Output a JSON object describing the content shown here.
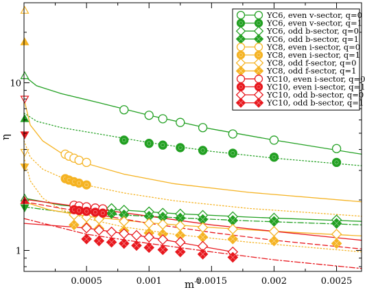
{
  "chart_data": {
    "type": "scatter",
    "xlabel": "m",
    "xlabel_sup": "-1",
    "ylabel": "η",
    "xlim": [
      0,
      0.0027
    ],
    "ylim": [
      0.75,
      30
    ],
    "yscale": "log",
    "xticks": [
      0.0005,
      0.001,
      0.0015,
      0.002,
      0.0025
    ],
    "xtick_labels": [
      "0.0005",
      "0.001",
      "0.0015",
      "0.002",
      "0.0025"
    ],
    "yticks": [
      1,
      10
    ],
    "ytick_labels": [
      "1",
      "10"
    ],
    "legend_position": "top-right",
    "series": [
      {
        "name": "YC6, even v-sector, q=0",
        "color": "#22a022",
        "marker": "circle",
        "filled": false,
        "x": [
          0.0008,
          0.001,
          0.00111,
          0.00125,
          0.00143,
          0.00167,
          0.002,
          0.0025
        ],
        "y": [
          6.9,
          6.4,
          6.1,
          5.8,
          5.4,
          4.95,
          4.55,
          4.05
        ],
        "fit": {
          "style": "solid",
          "extrap": 11.0,
          "x": [
            0,
            0.0001,
            0.0003,
            0.0006,
            0.001,
            0.0015,
            0.002,
            0.0027
          ],
          "y": [
            11.0,
            9.6,
            8.6,
            7.6,
            6.4,
            5.3,
            4.55,
            3.75
          ]
        }
      },
      {
        "name": "YC6, even v-sector, q=1",
        "color": "#22a022",
        "marker": "circle",
        "filled": true,
        "x": [
          0.0008,
          0.001,
          0.00111,
          0.00125,
          0.00143,
          0.00167,
          0.002,
          0.0025
        ],
        "y": [
          4.55,
          4.35,
          4.25,
          4.1,
          3.95,
          3.8,
          3.6,
          3.35
        ],
        "fit": {
          "style": "dotted",
          "extrap": 6.6,
          "x": [
            0,
            0.0001,
            0.0003,
            0.0006,
            0.001,
            0.0015,
            0.002,
            0.0027
          ],
          "y": [
            6.6,
            5.9,
            5.4,
            4.95,
            4.4,
            3.9,
            3.55,
            3.2
          ]
        }
      },
      {
        "name": "YC6, odd b-sector, q=0",
        "color": "#22a022",
        "marker": "diamond",
        "filled": false,
        "x": [
          0.0007,
          0.0008,
          0.001,
          0.00111,
          0.00125,
          0.00143,
          0.00167,
          0.002,
          0.0025
        ],
        "y": [
          1.78,
          1.74,
          1.7,
          1.67,
          1.65,
          1.62,
          1.59,
          1.56,
          1.52
        ],
        "fit": {
          "style": "solid",
          "extrap": 2.05,
          "x": [
            0,
            0.0003,
            0.0007,
            0.0012,
            0.0018,
            0.0027
          ],
          "y": [
            2.05,
            1.86,
            1.76,
            1.66,
            1.58,
            1.49
          ]
        }
      },
      {
        "name": "YC6, odd b-sector, q=1",
        "color": "#22a022",
        "marker": "diamond",
        "filled": true,
        "x": [
          0.0007,
          0.0008,
          0.001,
          0.00111,
          0.00125,
          0.00143,
          0.00167,
          0.002,
          0.0025
        ],
        "y": [
          1.66,
          1.63,
          1.6,
          1.58,
          1.56,
          1.53,
          1.51,
          1.49,
          1.45
        ],
        "fit": {
          "style": "dashdot",
          "extrap": 1.82,
          "x": [
            0,
            0.0003,
            0.0007,
            0.0012,
            0.0018,
            0.0027
          ],
          "y": [
            1.82,
            1.7,
            1.64,
            1.57,
            1.5,
            1.42
          ]
        }
      },
      {
        "name": "YC8, even i-sector, q=0",
        "color": "#f5b323",
        "marker": "circle",
        "filled": false,
        "x": [
          0.00033,
          0.00036,
          0.0004,
          0.00044,
          0.0005
        ],
        "y": [
          3.75,
          3.65,
          3.55,
          3.45,
          3.35
        ],
        "fit": {
          "style": "solid",
          "extrap": 8.0,
          "x": [
            0,
            5e-05,
            0.00015,
            0.0003,
            0.0005,
            0.0008,
            0.0012,
            0.0018,
            0.0027
          ],
          "y": [
            8.0,
            5.6,
            4.5,
            3.8,
            3.3,
            2.85,
            2.5,
            2.22,
            1.95
          ]
        }
      },
      {
        "name": "YC8, even i-sector, q=1",
        "color": "#f5b323",
        "marker": "circle",
        "filled": true,
        "x": [
          0.00033,
          0.00036,
          0.0004,
          0.00044,
          0.0005
        ],
        "y": [
          2.68,
          2.63,
          2.57,
          2.52,
          2.46
        ],
        "fit": {
          "style": "dotted",
          "extrap": 4.5,
          "x": [
            0,
            5e-05,
            0.00015,
            0.0003,
            0.0005,
            0.0008,
            0.0012,
            0.0018,
            0.0027
          ],
          "y": [
            4.5,
            3.6,
            3.05,
            2.72,
            2.45,
            2.2,
            1.98,
            1.78,
            1.6
          ]
        }
      },
      {
        "name": "YC8, odd f-sector, q=0",
        "color": "#f5b323",
        "marker": "diamond",
        "filled": false,
        "x": [
          0.0004,
          0.0005,
          0.0006,
          0.0008,
          0.001,
          0.00111,
          0.00125,
          0.00143,
          0.00167,
          0.002,
          0.0025
        ],
        "y": [
          1.63,
          1.58,
          1.54,
          1.49,
          1.45,
          1.43,
          1.4,
          1.37,
          1.34,
          1.3,
          1.25
        ],
        "fit": {
          "style": "solid",
          "extrap": 1.95,
          "x": [
            0,
            0.0002,
            0.0005,
            0.001,
            0.0015,
            0.002,
            0.0027
          ],
          "y": [
            1.95,
            1.75,
            1.6,
            1.46,
            1.37,
            1.3,
            1.22
          ]
        }
      },
      {
        "name": "YC8, odd f-sector, q=1",
        "color": "#f5b323",
        "marker": "diamond",
        "filled": true,
        "x": [
          0.0004,
          0.0005,
          0.0006,
          0.0008,
          0.001,
          0.00111,
          0.00125,
          0.00143,
          0.00167,
          0.002,
          0.0025
        ],
        "y": [
          1.42,
          1.38,
          1.35,
          1.31,
          1.27,
          1.25,
          1.23,
          1.2,
          1.17,
          1.14,
          1.1
        ],
        "fit": {
          "style": "dotted",
          "extrap": 3.6,
          "x": [
            0,
            5e-05,
            0.00015,
            0.0003,
            0.0005,
            0.0008,
            0.0012,
            0.0018,
            0.0027
          ],
          "y": [
            3.6,
            2.6,
            2.05,
            1.75,
            1.55,
            1.38,
            1.25,
            1.12,
            0.98
          ]
        }
      },
      {
        "name": "YC10, even i-sector, q=0",
        "color": "#e8181e",
        "marker": "circle",
        "filled": false,
        "x": [
          0.0004,
          0.00044,
          0.0005,
          0.00057,
          0.00063
        ],
        "y": [
          1.86,
          1.84,
          1.82,
          1.79,
          1.77
        ],
        "fit": {
          "style": "solid",
          "extrap": 2.02,
          "x": [
            0,
            0.0005,
            0.001,
            0.0015,
            0.002,
            0.0027
          ],
          "y": [
            2.02,
            1.8,
            1.6,
            1.42,
            1.3,
            1.15
          ]
        }
      },
      {
        "name": "YC10, even i-sector, q=1",
        "color": "#e8181e",
        "marker": "circle",
        "filled": true,
        "x": [
          0.0004,
          0.00044,
          0.0005,
          0.00057,
          0.00063
        ],
        "y": [
          1.75,
          1.73,
          1.71,
          1.69,
          1.67
        ],
        "fit": {
          "style": "dashed",
          "extrap": 1.95,
          "x": [
            0,
            0.0005,
            0.001,
            0.0015,
            0.002,
            0.0027
          ],
          "y": [
            1.95,
            1.68,
            1.45,
            1.28,
            1.15,
            1.02
          ]
        }
      },
      {
        "name": "YC10, odd b-sector, q=0",
        "color": "#e8181e",
        "marker": "diamond",
        "filled": false,
        "x": [
          0.0005,
          0.0006,
          0.0007,
          0.0008,
          0.0009,
          0.001,
          0.00111,
          0.00125,
          0.00143,
          0.00167
        ],
        "y": [
          1.36,
          1.32,
          1.29,
          1.26,
          1.23,
          1.2,
          1.16,
          1.12,
          1.06,
          0.98
        ],
        "fit": {
          "style": "solid",
          "extrap": 1.45,
          "x": [
            0,
            0.0005,
            0.001,
            0.00167
          ],
          "y": [
            1.45,
            1.36,
            1.2,
            0.98
          ]
        }
      },
      {
        "name": "YC10, odd b-sector, q=1",
        "color": "#e8181e",
        "marker": "diamond",
        "filled": true,
        "x": [
          0.0005,
          0.0006,
          0.0007,
          0.0008,
          0.0009,
          0.001,
          0.00111,
          0.00125,
          0.00143,
          0.00167
        ],
        "y": [
          1.17,
          1.14,
          1.12,
          1.1,
          1.07,
          1.04,
          1.01,
          0.98,
          0.95,
          0.91
        ],
        "fit": {
          "style": "dashdot",
          "extrap": 1.55,
          "x": [
            0,
            0.0005,
            0.001,
            0.0015,
            0.002,
            0.0027
          ],
          "y": [
            1.55,
            1.25,
            1.1,
            0.98,
            0.88,
            0.78
          ]
        }
      }
    ],
    "extrapolated_points": [
      {
        "color": "#f5b323",
        "shape": "triangle-up",
        "filled": false,
        "y": 27.0
      },
      {
        "color": "#f5b323",
        "shape": "triangle-up",
        "filled": true,
        "y": 17.5
      },
      {
        "color": "#22a022",
        "shape": "triangle-up",
        "filled": false,
        "y": 11.0
      },
      {
        "color": "#e8181e",
        "shape": "triangle-down",
        "filled": false,
        "y": 8.0
      },
      {
        "color": "#22a022",
        "shape": "triangle-up",
        "filled": true,
        "y": 6.1
      },
      {
        "color": "#e8181e",
        "shape": "triangle-down",
        "filled": true,
        "y": 4.9
      },
      {
        "color": "#f5b323",
        "shape": "triangle-down",
        "filled": false,
        "y": 3.85
      },
      {
        "color": "#f5b323",
        "shape": "triangle-down",
        "filled": true,
        "y": 3.15
      },
      {
        "color": "#22a022",
        "shape": "triangle-up",
        "filled": false,
        "y": 2.05
      },
      {
        "color": "#e8181e",
        "shape": "triangle-up",
        "filled": true,
        "y": 1.98
      },
      {
        "color": "#22a022",
        "shape": "triangle-down",
        "filled": true,
        "y": 1.8
      }
    ]
  }
}
